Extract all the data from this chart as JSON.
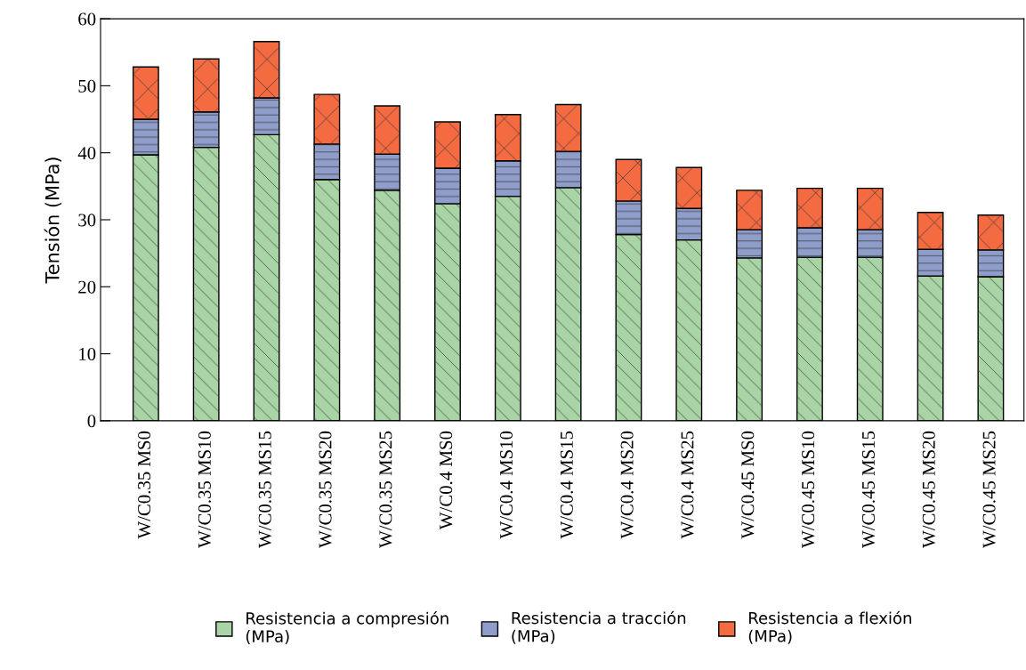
{
  "chart_data": {
    "type": "bar",
    "stacked": true,
    "ylabel": "Tensión (MPa)",
    "categories": [
      "W/C0.35 MS0",
      "W/C0.35 MS10",
      "W/C0.35 MS15",
      "W/C0.35 MS20",
      "W/C0.35 MS25",
      "W/C0.4 MS0",
      "W/C0.4 MS10",
      "W/C0.4 MS15",
      "W/C0.4 MS20",
      "W/C0.4 MS25",
      "W/C0.45 MS0",
      "W/C0.45 MS10",
      "W/C0.45 MS15",
      "W/C0.45 MS20",
      "W/C0.45 MS25"
    ],
    "series": [
      {
        "name": "Resistencia a compresión\n(MPa)",
        "color": "#a9d4a6",
        "values": [
          39.7,
          40.8,
          42.7,
          36.0,
          34.4,
          32.4,
          33.5,
          34.8,
          27.8,
          27.0,
          24.3,
          24.4,
          24.4,
          21.6,
          21.5
        ]
      },
      {
        "name": "Resistencia a tracción\n(MPa)",
        "color": "#8e9dc9",
        "values": [
          5.3,
          5.3,
          5.5,
          5.3,
          5.4,
          5.3,
          5.3,
          5.4,
          5.0,
          4.7,
          4.2,
          4.4,
          4.1,
          4.0,
          4.0
        ]
      },
      {
        "name": "Resistencia a flexión\n(MPa)",
        "color": "#f46b42",
        "values": [
          7.8,
          7.9,
          8.4,
          7.4,
          7.2,
          6.9,
          6.9,
          7.0,
          6.2,
          6.1,
          5.9,
          5.9,
          6.2,
          5.5,
          5.2
        ]
      }
    ],
    "ylim": [
      0,
      60
    ],
    "yticks": [
      0,
      10,
      20,
      30,
      40,
      50,
      60
    ],
    "grid": false,
    "legend": "bottom"
  }
}
